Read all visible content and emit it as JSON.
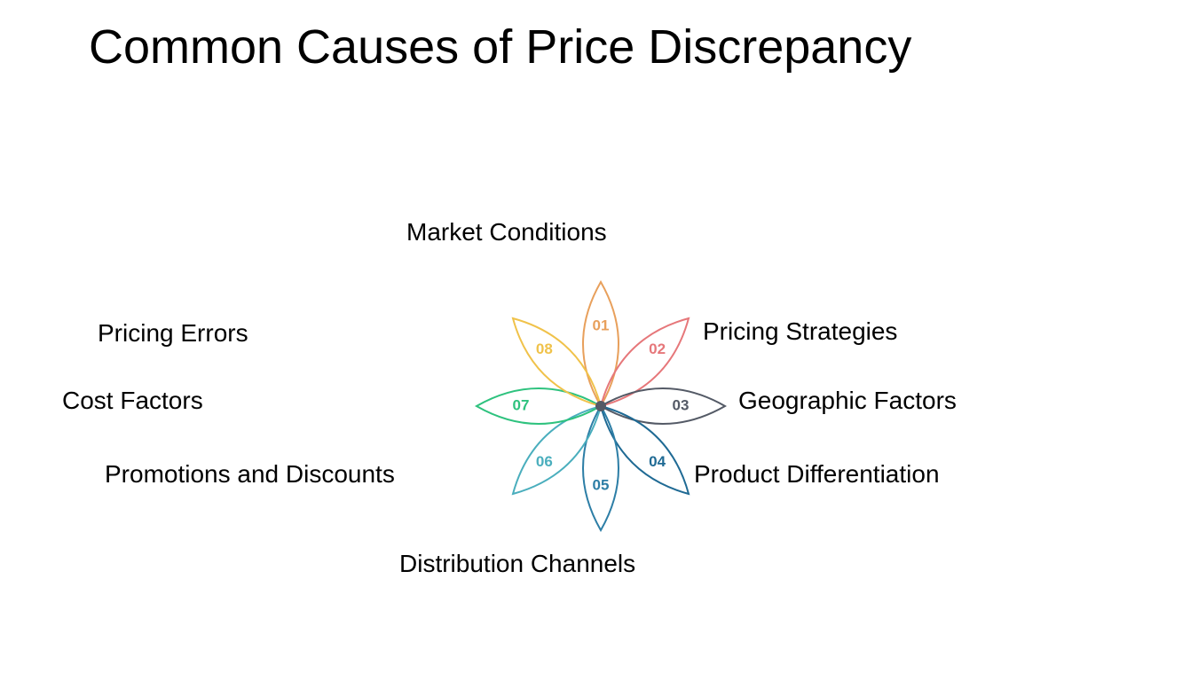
{
  "title": "Common Causes of Price Discrepancy",
  "nodes": [
    {
      "number": "01",
      "label": "Market Conditions",
      "color": "#e8a05c"
    },
    {
      "number": "02",
      "label": "Pricing Strategies",
      "color": "#e6777a"
    },
    {
      "number": "03",
      "label": "Geographic Factors",
      "color": "#545a66"
    },
    {
      "number": "04",
      "label": "Product Differentiation",
      "color": "#1f6a94"
    },
    {
      "number": "05",
      "label": "Distribution Channels",
      "color": "#2d7ea6"
    },
    {
      "number": "06",
      "label": "Promotions and Discounts",
      "color": "#4aaebd"
    },
    {
      "number": "07",
      "label": "Cost Factors",
      "color": "#2ec27e"
    },
    {
      "number": "08",
      "label": "Pricing Errors",
      "color": "#f0c24a"
    }
  ]
}
